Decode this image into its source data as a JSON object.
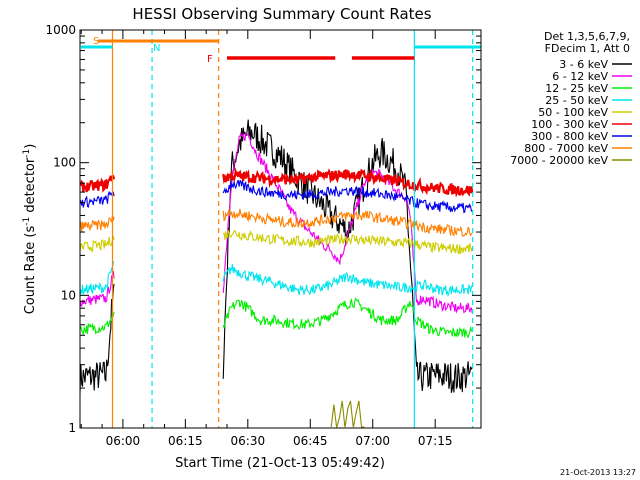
{
  "chart_data": {
    "type": "line",
    "title": "HESSI Observing Summary Count Rates",
    "xlabel": "Start Time (21-Oct-13 05:49:42)",
    "ylabel_prefix": "Count Rate (s",
    "ylabel_mid": " detector",
    "ylabel_suffix": ")",
    "ylabel_exp": "-1",
    "y_scale": "log",
    "ylim": [
      1,
      1000
    ],
    "xlim": [
      "05:49:42",
      "07:26:00"
    ],
    "x_ticks": [
      "06:00",
      "06:15",
      "06:30",
      "06:45",
      "07:00",
      "07:15"
    ],
    "y_ticks": [
      "1",
      "10",
      "100",
      "1000"
    ],
    "legend_header": [
      "Det 1,3,5,6,7,9,",
      "FDecim 1, Att 0"
    ],
    "legend_position": "top-right",
    "timestamp": "21-Oct-2013 13:27",
    "flags": {
      "saa": {
        "label": "S",
        "start": "05:49:42",
        "end": "06:23:00",
        "color": "#ff7f00"
      },
      "night": {
        "label": "N",
        "color": "#00e5ee",
        "spans": [
          [
            "05:49:42",
            "05:57:30"
          ],
          [
            "07:10:00",
            "07:26:00"
          ]
        ]
      },
      "flare": {
        "label": "F",
        "color": "#ee0000",
        "spans": [
          [
            "06:25:00",
            "06:51:00"
          ],
          [
            "06:55:00",
            "07:10:00"
          ]
        ]
      }
    },
    "vlines": {
      "solid_orange": [
        "05:57:30"
      ],
      "dashed_cyan": [
        "06:07:00",
        "07:24:00"
      ],
      "dashed_orange": [
        "06:23:00"
      ],
      "solid_cyan": [
        "07:10:00"
      ]
    },
    "gap": [
      "05:58:00",
      "06:24:00"
    ],
    "series": [
      {
        "name": "3 - 6 keV",
        "color": "#000000",
        "x": [
          "05:49:42",
          "05:56:00",
          "05:57:40",
          "06:24:00",
          "06:26:00",
          "06:28:00",
          "06:30:00",
          "06:31:00",
          "06:32:00",
          "06:34:00",
          "06:36:00",
          "06:38:00",
          "06:40:00",
          "06:42:00",
          "06:44:00",
          "06:46:00",
          "06:48:00",
          "06:50:00",
          "06:52:00",
          "06:54:00",
          "06:56:00",
          "06:58:00",
          "07:00:00",
          "07:02:00",
          "07:04:00",
          "07:06:00",
          "07:08:00",
          "07:09:30",
          "07:10:30",
          "07:12:00",
          "07:16:00",
          "07:20:00",
          "07:24:00"
        ],
        "y": [
          2.4,
          2.5,
          10,
          2.5,
          90,
          140,
          165,
          170,
          160,
          140,
          125,
          110,
          90,
          75,
          65,
          55,
          48,
          40,
          35,
          30,
          45,
          70,
          100,
          120,
          105,
          90,
          60,
          10,
          2.4,
          2.4,
          2.5,
          2.4,
          2.5
        ]
      },
      {
        "name": "6 - 12 keV",
        "color": "#ee00ee",
        "x": [
          "05:49:42",
          "05:56:00",
          "05:57:40",
          "06:24:00",
          "06:26:00",
          "06:28:00",
          "06:30:00",
          "06:32:00",
          "06:34:00",
          "06:36:00",
          "06:38:00",
          "06:40:00",
          "06:42:00",
          "06:44:00",
          "06:46:00",
          "06:48:00",
          "06:50:00",
          "06:52:00",
          "06:54:00",
          "06:56:00",
          "06:58:00",
          "07:00:00",
          "07:02:00",
          "07:04:00",
          "07:06:00",
          "07:08:00",
          "07:09:00",
          "07:10:30",
          "07:12:00",
          "07:16:00",
          "07:20:00",
          "07:24:00"
        ],
        "y": [
          9,
          9.5,
          14,
          10,
          70,
          150,
          165,
          120,
          95,
          75,
          60,
          45,
          38,
          32,
          28,
          24,
          22,
          18,
          28,
          45,
          70,
          85,
          80,
          70,
          60,
          55,
          40,
          9,
          9.5,
          8.5,
          8,
          8
        ]
      },
      {
        "name": "12 - 25 keV",
        "color": "#00ee00",
        "x": [
          "05:49:42",
          "05:56:00",
          "05:57:40",
          "06:24:00",
          "06:26:00",
          "06:28:00",
          "06:30:00",
          "06:33:00",
          "06:36:00",
          "06:40:00",
          "06:44:00",
          "06:48:00",
          "06:52:00",
          "06:55:00",
          "06:58:00",
          "07:02:00",
          "07:06:00",
          "07:09:00",
          "07:10:30",
          "07:14:00",
          "07:18:00",
          "07:24:00"
        ],
        "y": [
          5.5,
          5.8,
          7,
          5.5,
          8,
          9,
          8,
          6.5,
          6.5,
          6.2,
          6,
          6.5,
          8,
          9,
          8,
          6.5,
          6.5,
          9,
          6.5,
          5.5,
          5.2,
          5.3
        ]
      },
      {
        "name": "25 - 50 keV",
        "color": "#00e5ee",
        "x": [
          "05:49:42",
          "05:56:00",
          "05:57:40",
          "06:24:00",
          "06:26:00",
          "06:30:00",
          "06:34:00",
          "06:38:00",
          "06:42:00",
          "06:46:00",
          "06:50:00",
          "06:54:00",
          "06:58:00",
          "07:02:00",
          "07:06:00",
          "07:10:00",
          "07:12:00",
          "07:16:00",
          "07:20:00",
          "07:24:00"
        ],
        "y": [
          11,
          11.5,
          17,
          13,
          16,
          14,
          13,
          12,
          11,
          11,
          12,
          14,
          12.5,
          12,
          11.5,
          11.5,
          12,
          11,
          11,
          11
        ]
      },
      {
        "name": "50 - 100 keV",
        "color": "#cdcd00",
        "x": [
          "05:49:42",
          "05:56:00",
          "05:57:40",
          "06:24:00",
          "06:26:00",
          "06:30:00",
          "06:34:00",
          "06:38:00",
          "06:42:00",
          "06:46:00",
          "06:50:00",
          "06:54:00",
          "06:58:00",
          "07:02:00",
          "07:06:00",
          "07:10:00",
          "07:14:00",
          "07:18:00",
          "07:24:00"
        ],
        "y": [
          23,
          24,
          27,
          28,
          30,
          28,
          27,
          26,
          25.5,
          25,
          26,
          27,
          26,
          25.5,
          25,
          24.5,
          23,
          22.5,
          22.5
        ]
      },
      {
        "name": "100 - 300 keV",
        "color": "#ee0000",
        "x": [
          "05:49:42",
          "05:56:00",
          "05:57:40",
          "06:24:00",
          "06:26:00",
          "06:30:00",
          "06:34:00",
          "06:38:00",
          "06:42:00",
          "06:46:00",
          "06:50:00",
          "06:54:00",
          "06:58:00",
          "07:02:00",
          "07:06:00",
          "07:10:00",
          "07:14:00",
          "07:18:00",
          "07:24:00"
        ],
        "y": [
          65,
          68,
          80,
          75,
          80,
          78,
          76,
          75,
          74,
          78,
          80,
          82,
          80,
          76,
          72,
          68,
          65,
          63,
          62
        ]
      },
      {
        "name": "300 - 800 keV",
        "color": "#0000ee",
        "x": [
          "05:49:42",
          "05:56:00",
          "05:57:40",
          "06:24:00",
          "06:26:00",
          "06:30:00",
          "06:34:00",
          "06:38:00",
          "06:42:00",
          "06:46:00",
          "06:50:00",
          "06:54:00",
          "06:58:00",
          "07:02:00",
          "07:06:00",
          "07:10:00",
          "07:14:00",
          "07:18:00",
          "07:24:00"
        ],
        "y": [
          50,
          52,
          60,
          55,
          70,
          65,
          60,
          58,
          57,
          58,
          60,
          62,
          60,
          58,
          55,
          50,
          47,
          46,
          45
        ]
      },
      {
        "name": "800 - 7000 keV",
        "color": "#ff7f00",
        "x": [
          "05:49:42",
          "05:56:00",
          "05:57:40",
          "06:24:00",
          "06:26:00",
          "06:30:00",
          "06:34:00",
          "06:38:00",
          "06:42:00",
          "06:46:00",
          "06:50:00",
          "06:54:00",
          "06:58:00",
          "07:02:00",
          "07:06:00",
          "07:10:00",
          "07:14:00",
          "07:18:00",
          "07:24:00"
        ],
        "y": [
          33,
          34,
          38,
          40,
          42,
          40,
          38,
          36,
          35,
          36,
          38,
          40,
          40,
          38,
          36,
          34,
          32,
          31,
          30
        ]
      },
      {
        "name": "7000 - 20000 keV",
        "color": "#8b8b00",
        "x": [
          "06:50:00",
          "06:50:40",
          "06:51:20",
          "06:52:00",
          "06:52:40",
          "06:53:20",
          "06:54:00",
          "06:54:40",
          "06:55:20",
          "06:56:00",
          "06:56:40",
          "06:57:20",
          "06:58:00"
        ],
        "y": [
          1,
          1.5,
          1,
          1.2,
          1.6,
          1,
          1.4,
          1.6,
          1,
          1.3,
          1.6,
          1,
          1
        ]
      }
    ]
  }
}
